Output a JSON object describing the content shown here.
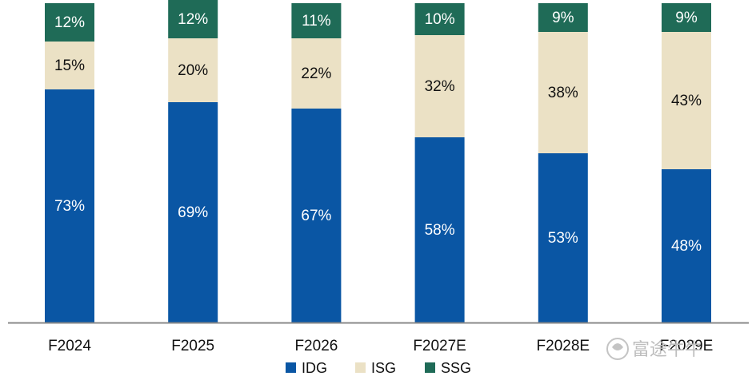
{
  "chart_data": {
    "type": "bar",
    "stacked": true,
    "percent": true,
    "categories": [
      "F2024",
      "F2025",
      "F2026",
      "F2027E",
      "F2028E",
      "F2029E"
    ],
    "series": [
      {
        "name": "IDG",
        "values": [
          73,
          69,
          67,
          58,
          53,
          48
        ],
        "labels": [
          "73%",
          "69%",
          "67%",
          "58%",
          "53%",
          "48%"
        ],
        "color": "#0a56a4",
        "label_color": "#ffffff"
      },
      {
        "name": "ISG",
        "values": [
          15,
          20,
          22,
          32,
          38,
          43
        ],
        "labels": [
          "15%",
          "20%",
          "22%",
          "32%",
          "38%",
          "43%"
        ],
        "color": "#ebe1c5",
        "label_color": "#111111"
      },
      {
        "name": "SSG",
        "values": [
          12,
          12,
          11,
          10,
          9,
          9
        ],
        "labels": [
          "12%",
          "12%",
          "11%",
          "10%",
          "9%",
          "9%"
        ],
        "color": "#1f6b57",
        "label_color": "#ffffff"
      }
    ],
    "ylim": [
      0,
      100
    ],
    "legend_position": "bottom-center",
    "grid": false,
    "axis_color": "#888888"
  },
  "watermark": {
    "text": "富途牛牛",
    "icon": "futu-bull-icon"
  }
}
